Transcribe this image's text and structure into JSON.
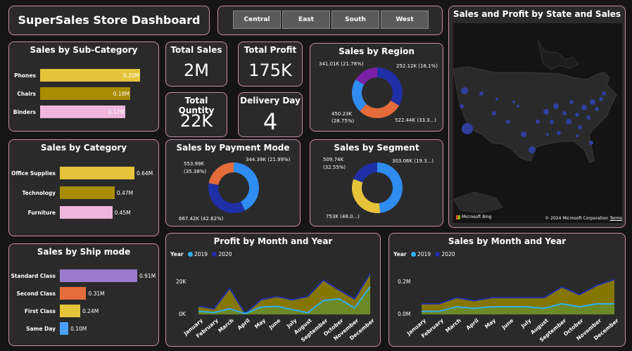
{
  "header": {
    "title": "SuperSales Store Dashboard"
  },
  "region_slicer": {
    "options": [
      "Central",
      "East",
      "South",
      "West"
    ]
  },
  "sales_by_subcategory": {
    "title": "Sales by Sub-Category",
    "chart_data": {
      "type": "bar",
      "categories": [
        "Phones",
        "Chairs",
        "Binders"
      ],
      "values": [
        0.2,
        0.18,
        0.17
      ],
      "labels": [
        "0.20M",
        "0.18M",
        "0.17M"
      ],
      "colors": [
        "#e6c43a",
        "#a98c00",
        "#f0b5dc"
      ]
    }
  },
  "sales_by_category": {
    "title": "Sales by Category",
    "chart_data": {
      "type": "bar",
      "categories": [
        "Office Supplies",
        "Technology",
        "Furniture"
      ],
      "values": [
        0.64,
        0.47,
        0.45
      ],
      "labels": [
        "0.64M",
        "0.47M",
        "0.45M"
      ],
      "colors": [
        "#e6c43a",
        "#a98c00",
        "#f0b5dc"
      ]
    }
  },
  "sales_by_ship_mode": {
    "title": "Sales by Ship mode",
    "chart_data": {
      "type": "bar",
      "categories": [
        "Standard Class",
        "Second Class",
        "First Class",
        "Same Day"
      ],
      "values": [
        0.91,
        0.31,
        0.24,
        0.1
      ],
      "labels": [
        "0.91M",
        "0.31M",
        "0.24M",
        "0.10M"
      ],
      "colors": [
        "#9b79cc",
        "#e36c3a",
        "#e6c43a",
        "#4a9eff"
      ]
    }
  },
  "kpis": {
    "total_sales": {
      "title": "Total Sales",
      "value": "2M"
    },
    "total_profit": {
      "title": "Total Profit",
      "value": "175K"
    },
    "total_quantity": {
      "title": "Total Quntity",
      "value": "22K"
    },
    "delivery_day": {
      "title": "Delivery Day",
      "value": "4"
    }
  },
  "sales_by_region": {
    "title": "Sales by Region",
    "chart_data": {
      "type": "pie",
      "slices": [
        {
          "value": 522.44,
          "label": "522.44K (33.3...)",
          "color": "#1f2fa6"
        },
        {
          "value": 450.23,
          "label": "450.23K (28.75%)",
          "color": "#e36c3a"
        },
        {
          "value": 341.01,
          "label": "341.01K (21.78%)",
          "color": "#2f8cf0"
        },
        {
          "value": 252.12,
          "label": "252.12K (16.1%)",
          "color": "#7a1fa6"
        }
      ]
    },
    "labels": {
      "a": "341.01K (21.78%)",
      "b": "252.12K (16.1%)",
      "c1": "450.23K",
      "c2": "(28.75%)",
      "d": "522.44K (33.3...)"
    }
  },
  "sales_by_payment_mode": {
    "title": "Sales by Payment Mode",
    "chart_data": {
      "type": "pie",
      "slices": [
        {
          "value": 667.42,
          "label": "667.42K (42.62%)",
          "color": "#2f8cf0"
        },
        {
          "value": 553.99,
          "label": "553.99K (35.38%)",
          "color": "#1f2fa6"
        },
        {
          "value": 344.39,
          "label": "344.39K (21.99%)",
          "color": "#e36c3a"
        }
      ]
    },
    "labels": {
      "a1": "553.99K",
      "a2": "(35.38%)",
      "b": "344.39K (21.99%)",
      "c": "667.42K (42.62%)"
    }
  },
  "sales_by_segment": {
    "title": "Sales by Segment",
    "chart_data": {
      "type": "pie",
      "slices": [
        {
          "value": 753,
          "label": "753K (48.0...)",
          "color": "#2f8cf0"
        },
        {
          "value": 509.74,
          "label": "509.74K (32.55%)",
          "color": "#e6c43a"
        },
        {
          "value": 303.06,
          "label": "303.06K (19.3...)",
          "color": "#1f2fa6"
        }
      ]
    },
    "labels": {
      "a1": "509.74K",
      "a2": "(32.55%)",
      "b": "303.06K (19.3...)",
      "c": "753K (48.0...)"
    }
  },
  "map": {
    "title": "Sales and Profit by State and Sales",
    "bing": "Microsoft Bing",
    "copyright": "© 2024 Microsoft Corporation",
    "terms": "Terms"
  },
  "profit_by_month": {
    "title": "Profit by Month and Year",
    "legend": {
      "label": "Year",
      "s1": "2019",
      "s2": "2020"
    },
    "y_ticks": [
      "20K",
      "0K"
    ],
    "chart_data": {
      "type": "area",
      "x": [
        "January",
        "February",
        "March",
        "April",
        "May",
        "June",
        "July",
        "August",
        "September",
        "October",
        "November",
        "December"
      ],
      "ylim": [
        0,
        28000
      ],
      "series": [
        {
          "name": "2019",
          "color": "#2fb0f0",
          "values": [
            2000,
            1200,
            3500,
            500,
            4500,
            5000,
            3000,
            1000,
            8500,
            9500,
            4000,
            17000
          ]
        },
        {
          "name": "2020",
          "color": "#1f2fa6",
          "values": [
            5000,
            3500,
            16000,
            500,
            9000,
            11000,
            9000,
            11000,
            21000,
            15000,
            9500,
            25000
          ]
        }
      ]
    }
  },
  "sales_by_month": {
    "title": "Sales by Month and Year",
    "legend": {
      "label": "Year",
      "s1": "2019",
      "s2": "2020"
    },
    "y_ticks": [
      "0.2M",
      "0.0M"
    ],
    "chart_data": {
      "type": "area",
      "x": [
        "January",
        "February",
        "March",
        "April",
        "May",
        "June",
        "July",
        "August",
        "September",
        "October",
        "November",
        "December"
      ],
      "ylim": [
        0,
        0.3
      ],
      "series": [
        {
          "name": "2019",
          "color": "#2fb0f0",
          "values": [
            0.02,
            0.02,
            0.05,
            0.04,
            0.05,
            0.05,
            0.05,
            0.04,
            0.07,
            0.05,
            0.07,
            0.07
          ]
        },
        {
          "name": "2020",
          "color": "#1f2fa6",
          "values": [
            0.07,
            0.07,
            0.11,
            0.09,
            0.11,
            0.11,
            0.11,
            0.11,
            0.18,
            0.13,
            0.19,
            0.23
          ]
        }
      ]
    }
  },
  "colors": {
    "accent_border": "#c98aa8",
    "background": "#151515",
    "card": "#2a2a2a"
  }
}
